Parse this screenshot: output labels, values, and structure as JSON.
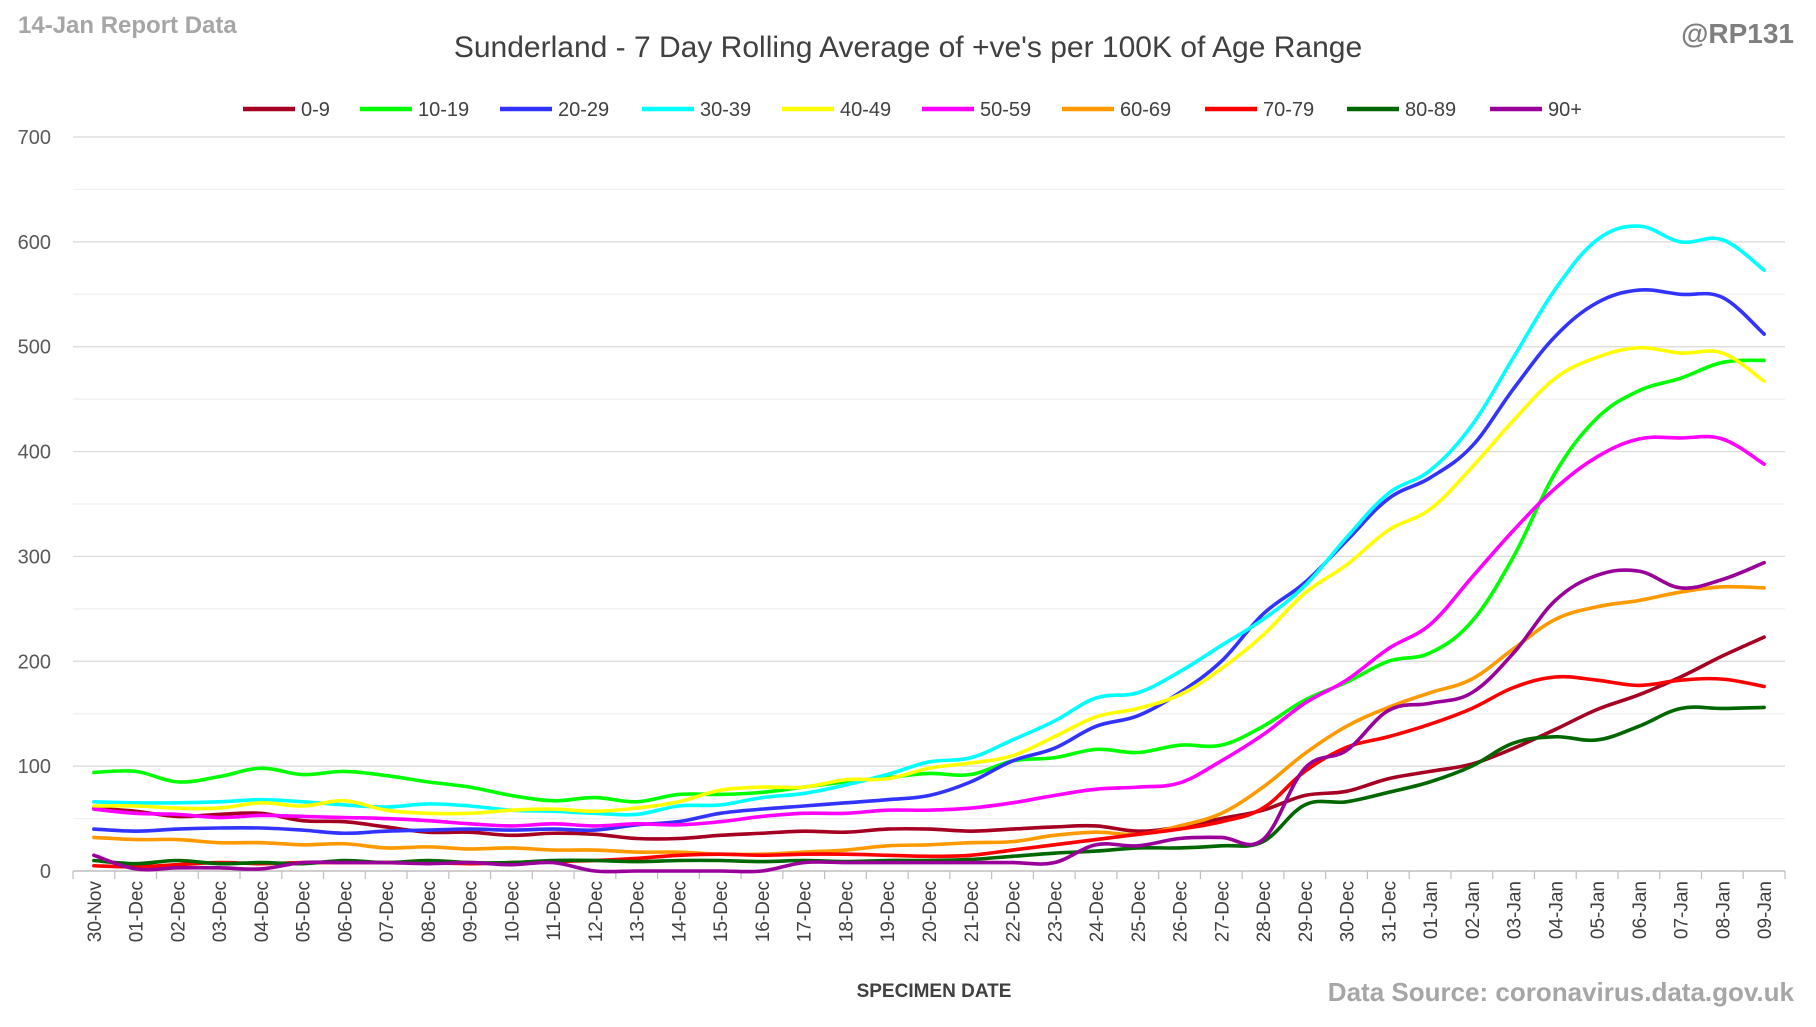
{
  "header": {
    "report_label": "14-Jan Report Data",
    "handle": "@RP131"
  },
  "footer": {
    "source": "Data Source: coronavirus.data.gov.uk"
  },
  "chart_data": {
    "type": "line",
    "title": "Sunderland - 7 Day Rolling Average of +ve's per 100K of Age Range",
    "xlabel": "SPECIMEN DATE",
    "ylabel": "",
    "ylim": [
      0,
      700
    ],
    "yticks": [
      0,
      100,
      200,
      300,
      400,
      500,
      600,
      700
    ],
    "grid": true,
    "legend_position": "top",
    "categories": [
      "30-Nov",
      "01-Dec",
      "02-Dec",
      "03-Dec",
      "04-Dec",
      "05-Dec",
      "06-Dec",
      "07-Dec",
      "08-Dec",
      "09-Dec",
      "10-Dec",
      "11-Dec",
      "12-Dec",
      "13-Dec",
      "14-Dec",
      "15-Dec",
      "16-Dec",
      "17-Dec",
      "18-Dec",
      "19-Dec",
      "20-Dec",
      "21-Dec",
      "22-Dec",
      "23-Dec",
      "24-Dec",
      "25-Dec",
      "26-Dec",
      "27-Dec",
      "28-Dec",
      "29-Dec",
      "30-Dec",
      "31-Dec",
      "01-Jan",
      "02-Jan",
      "03-Jan",
      "04-Jan",
      "05-Jan",
      "06-Jan",
      "07-Jan",
      "08-Jan",
      "09-Jan"
    ],
    "series": [
      {
        "name": "0-9",
        "color": "#a50021",
        "values": [
          60,
          57,
          52,
          54,
          55,
          48,
          47,
          42,
          37,
          37,
          34,
          36,
          35,
          31,
          31,
          34,
          36,
          38,
          37,
          40,
          40,
          38,
          40,
          42,
          43,
          38,
          42,
          50,
          58,
          72,
          76,
          88,
          95,
          102,
          117,
          135,
          154,
          168,
          185,
          205,
          223
        ]
      },
      {
        "name": "10-19",
        "color": "#00ff00",
        "values": [
          94,
          95,
          85,
          90,
          98,
          92,
          95,
          91,
          85,
          80,
          72,
          67,
          70,
          66,
          73,
          73,
          75,
          80,
          85,
          89,
          93,
          92,
          105,
          108,
          116,
          113,
          120,
          120,
          138,
          163,
          180,
          200,
          208,
          238,
          300,
          380,
          432,
          458,
          470,
          485,
          487
        ]
      },
      {
        "name": "20-29",
        "color": "#3333ff",
        "values": [
          40,
          38,
          40,
          41,
          41,
          39,
          36,
          38,
          39,
          40,
          39,
          40,
          39,
          44,
          47,
          55,
          59,
          62,
          65,
          68,
          72,
          85,
          105,
          117,
          138,
          148,
          170,
          200,
          245,
          275,
          315,
          355,
          375,
          405,
          460,
          510,
          542,
          554,
          550,
          547,
          512
        ]
      },
      {
        "name": "30-39",
        "color": "#00ffff",
        "values": [
          66,
          65,
          65,
          66,
          68,
          66,
          63,
          61,
          64,
          62,
          58,
          57,
          55,
          54,
          62,
          63,
          70,
          74,
          82,
          92,
          104,
          108,
          125,
          143,
          165,
          170,
          190,
          215,
          240,
          272,
          318,
          360,
          382,
          425,
          490,
          555,
          602,
          615,
          600,
          602,
          573
        ]
      },
      {
        "name": "40-49",
        "color": "#ffff00",
        "values": [
          62,
          62,
          60,
          60,
          65,
          62,
          67,
          58,
          55,
          55,
          58,
          59,
          57,
          60,
          66,
          77,
          80,
          80,
          87,
          88,
          98,
          103,
          110,
          128,
          147,
          155,
          168,
          193,
          225,
          265,
          292,
          325,
          345,
          385,
          430,
          470,
          490,
          499,
          494,
          494,
          467
        ]
      },
      {
        "name": "50-59",
        "color": "#ff00ff",
        "values": [
          59,
          55,
          54,
          51,
          53,
          52,
          51,
          50,
          48,
          45,
          43,
          45,
          43,
          45,
          44,
          47,
          52,
          55,
          55,
          58,
          58,
          60,
          65,
          72,
          78,
          80,
          84,
          105,
          130,
          160,
          182,
          212,
          235,
          280,
          325,
          365,
          395,
          412,
          413,
          412,
          388
        ]
      },
      {
        "name": "60-69",
        "color": "#ff9900",
        "values": [
          32,
          30,
          30,
          27,
          27,
          25,
          26,
          22,
          23,
          21,
          22,
          20,
          20,
          18,
          18,
          16,
          16,
          18,
          20,
          24,
          25,
          27,
          28,
          34,
          37,
          35,
          43,
          55,
          80,
          112,
          138,
          156,
          170,
          183,
          212,
          240,
          252,
          258,
          266,
          271,
          270
        ]
      },
      {
        "name": "70-79",
        "color": "#ff0000",
        "values": [
          5,
          4,
          6,
          8,
          7,
          8,
          8,
          8,
          8,
          7,
          8,
          9,
          10,
          12,
          15,
          16,
          15,
          16,
          16,
          15,
          14,
          15,
          20,
          25,
          30,
          35,
          40,
          47,
          60,
          95,
          118,
          128,
          140,
          155,
          175,
          185,
          182,
          177,
          182,
          183,
          176
        ]
      },
      {
        "name": "80-89",
        "color": "#006600",
        "values": [
          10,
          7,
          10,
          7,
          8,
          7,
          10,
          8,
          10,
          8,
          8,
          10,
          10,
          9,
          10,
          10,
          9,
          10,
          9,
          10,
          10,
          11,
          14,
          17,
          19,
          22,
          22,
          24,
          28,
          63,
          66,
          75,
          85,
          100,
          122,
          128,
          125,
          138,
          155,
          155,
          156
        ]
      },
      {
        "name": "90+",
        "color": "#990099",
        "values": [
          15,
          2,
          3,
          3,
          2,
          8,
          8,
          8,
          7,
          8,
          6,
          8,
          0,
          0,
          0,
          0,
          0,
          8,
          8,
          8,
          8,
          8,
          8,
          8,
          25,
          24,
          31,
          32,
          30,
          98,
          115,
          153,
          160,
          170,
          208,
          258,
          282,
          286,
          270,
          278,
          294
        ]
      }
    ]
  }
}
